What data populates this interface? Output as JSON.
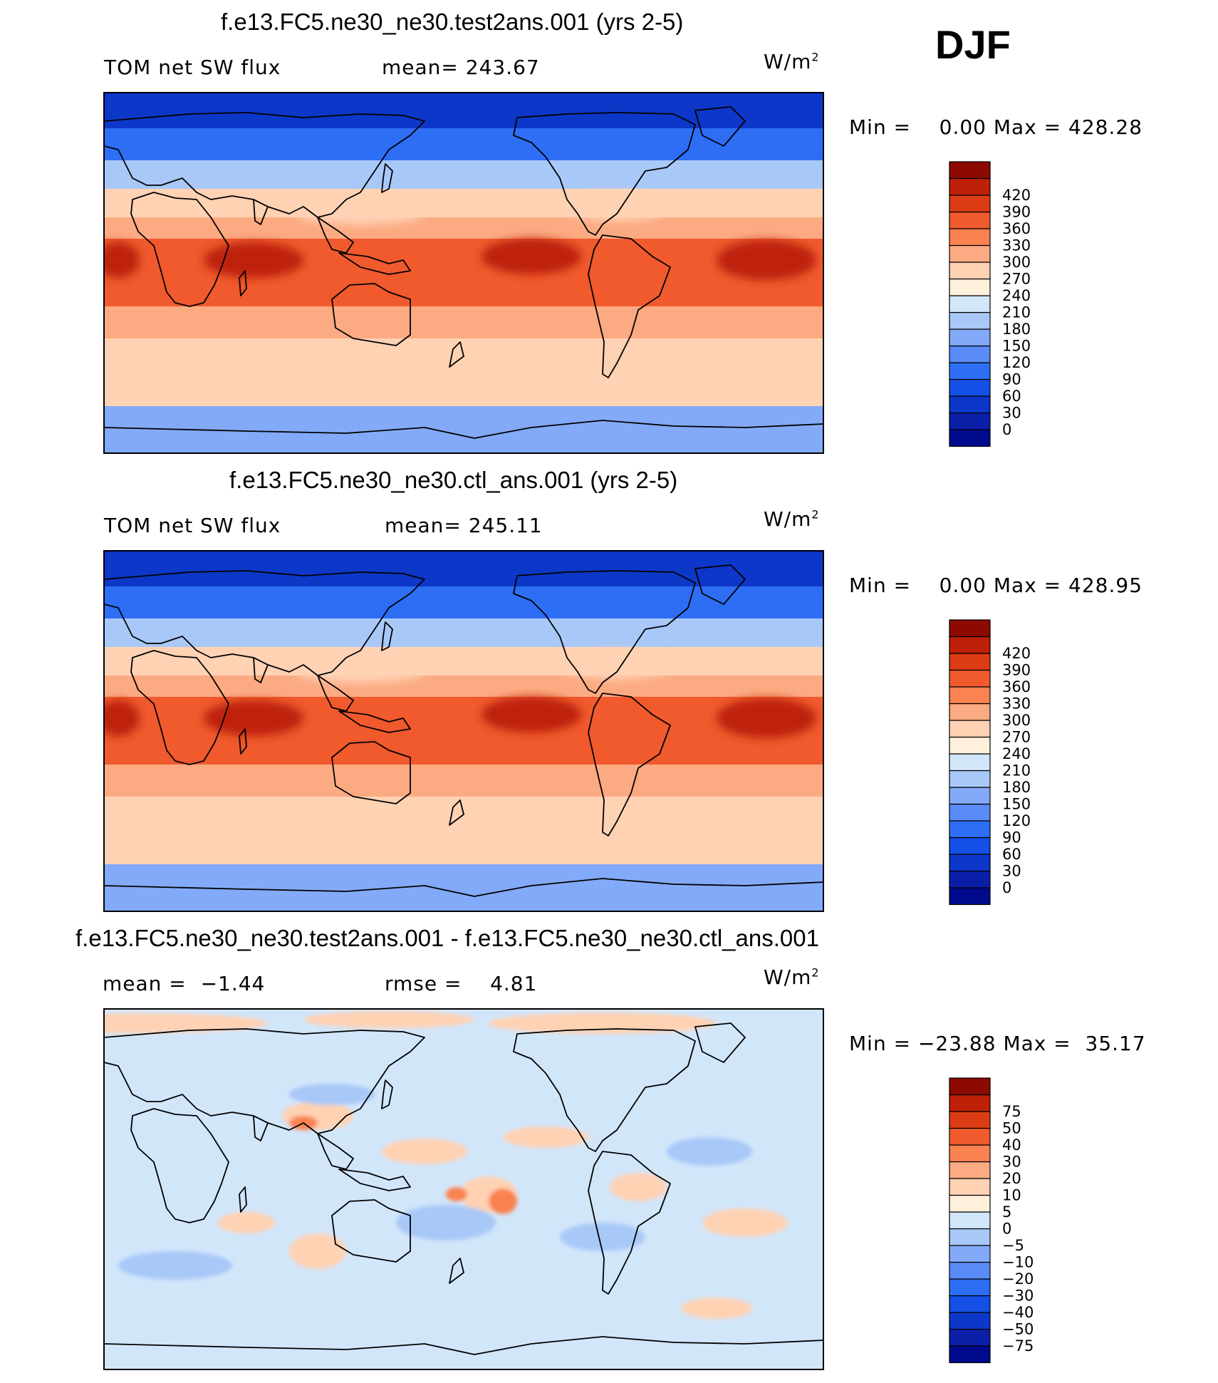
{
  "season": "DJF",
  "panels": [
    {
      "title": "f.e13.FC5.ne30_ne30.test2ans.001 (yrs 2-5)",
      "left_label": "TOM net SW flux",
      "center_label": "mean= 243.67",
      "units_base": "W/m",
      "units_exp": "2",
      "minmax": "Min =    0.00 Max = 428.28",
      "colorbar": {
        "colors": [
          "#000a8c",
          "#0a1ea8",
          "#0d37c8",
          "#1450e6",
          "#2d6ef5",
          "#5a8cf8",
          "#82aaf8",
          "#a8c8f8",
          "#d2e6fa",
          "#fff0dc",
          "#ffd2b4",
          "#fcaa82",
          "#fa8250",
          "#f05a2d",
          "#dc3c14",
          "#be2008",
          "#8c0a00"
        ],
        "labels": [
          "0",
          "30",
          "60",
          "90",
          "120",
          "150",
          "180",
          "210",
          "240",
          "270",
          "300",
          "330",
          "360",
          "390",
          "420"
        ]
      }
    },
    {
      "title": "f.e13.FC5.ne30_ne30.ctl_ans.001 (yrs 2-5)",
      "left_label": "TOM net SW flux",
      "center_label": "mean= 245.11",
      "units_base": "W/m",
      "units_exp": "2",
      "minmax": "Min =    0.00 Max = 428.95",
      "colorbar": {
        "colors": [
          "#000a8c",
          "#0a1ea8",
          "#0d37c8",
          "#1450e6",
          "#2d6ef5",
          "#5a8cf8",
          "#82aaf8",
          "#a8c8f8",
          "#d2e6fa",
          "#fff0dc",
          "#ffd2b4",
          "#fcaa82",
          "#fa8250",
          "#f05a2d",
          "#dc3c14",
          "#be2008",
          "#8c0a00"
        ],
        "labels": [
          "0",
          "30",
          "60",
          "90",
          "120",
          "150",
          "180",
          "210",
          "240",
          "270",
          "300",
          "330",
          "360",
          "390",
          "420"
        ]
      }
    },
    {
      "title": "f.e13.FC5.ne30_ne30.test2ans.001 - f.e13.FC5.ne30_ne30.ctl_ans.001",
      "left_label": "mean =  −1.44",
      "center_label": "rmse =    4.81",
      "units_base": "W/m",
      "units_exp": "2",
      "minmax": "Min = −23.88 Max =  35.17",
      "colorbar": {
        "colors": [
          "#000a8c",
          "#0a1ea8",
          "#0d37c8",
          "#1450e6",
          "#2d6ef5",
          "#5a8cf8",
          "#82aaf8",
          "#a8c8f8",
          "#d2e6fa",
          "#fff0dc",
          "#ffd2b4",
          "#fcaa82",
          "#fa8250",
          "#f05a2d",
          "#dc3c14",
          "#be2008",
          "#8c0a00"
        ],
        "labels": [
          "−75",
          "−50",
          "−40",
          "−30",
          "−20",
          "−10",
          "−5",
          "0",
          "5",
          "10",
          "20",
          "30",
          "40",
          "50",
          "75"
        ]
      }
    }
  ],
  "map_colors": {
    "polar_n": "#0d37c8",
    "midlat_n": "#2d6ef5",
    "northern_band": "#a8c8f8",
    "subtropic": "#ffd2b4",
    "tropic_band": "#f05a2d",
    "core": "#be2008",
    "southern_band": "#fcaa82",
    "antarctic": "#82aaf8",
    "diff_bg": "#d2e6fa",
    "diff_pos": "#ffd2b4",
    "diff_neg": "#a8c8f8",
    "diff_hot": "#fa8250"
  }
}
